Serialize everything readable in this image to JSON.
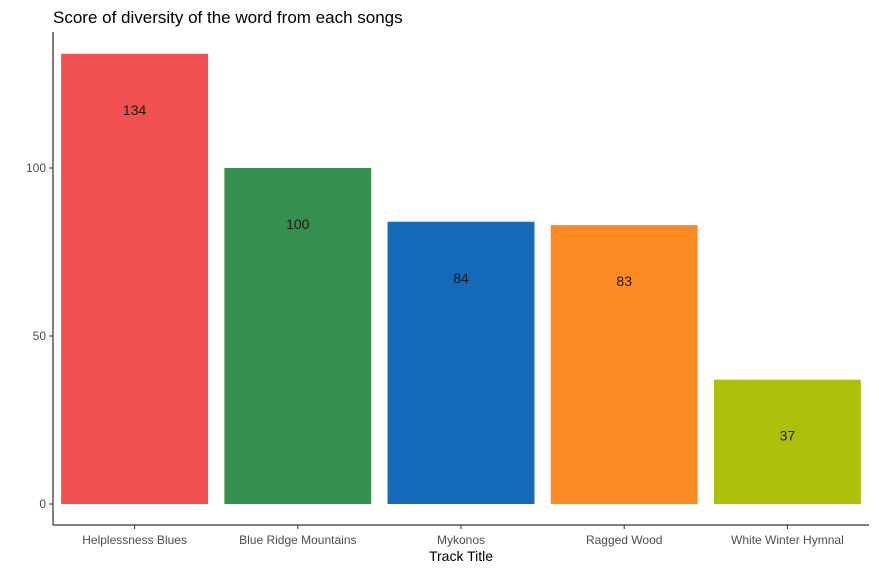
{
  "chart_data": {
    "type": "bar",
    "title": "Score of diversity of the word from each songs",
    "xlabel": "Track Title",
    "ylabel": "",
    "categories": [
      "Helplessness Blues",
      "Blue Ridge Mountains",
      "Mykonos",
      "Ragged Wood",
      "White Winter Hymnal"
    ],
    "values": [
      134,
      100,
      84,
      83,
      37
    ],
    "data_labels": [
      "134",
      "100",
      "84",
      "83",
      "37"
    ],
    "colors": [
      "#f05050",
      "#358f4f",
      "#1469b8",
      "#fb8a23",
      "#acc00a"
    ],
    "y_ticks": [
      0,
      50,
      100
    ],
    "y_tick_labels": [
      "0",
      "50",
      "100"
    ],
    "ylim": [
      0,
      140
    ],
    "grid": false,
    "legend": "none"
  }
}
